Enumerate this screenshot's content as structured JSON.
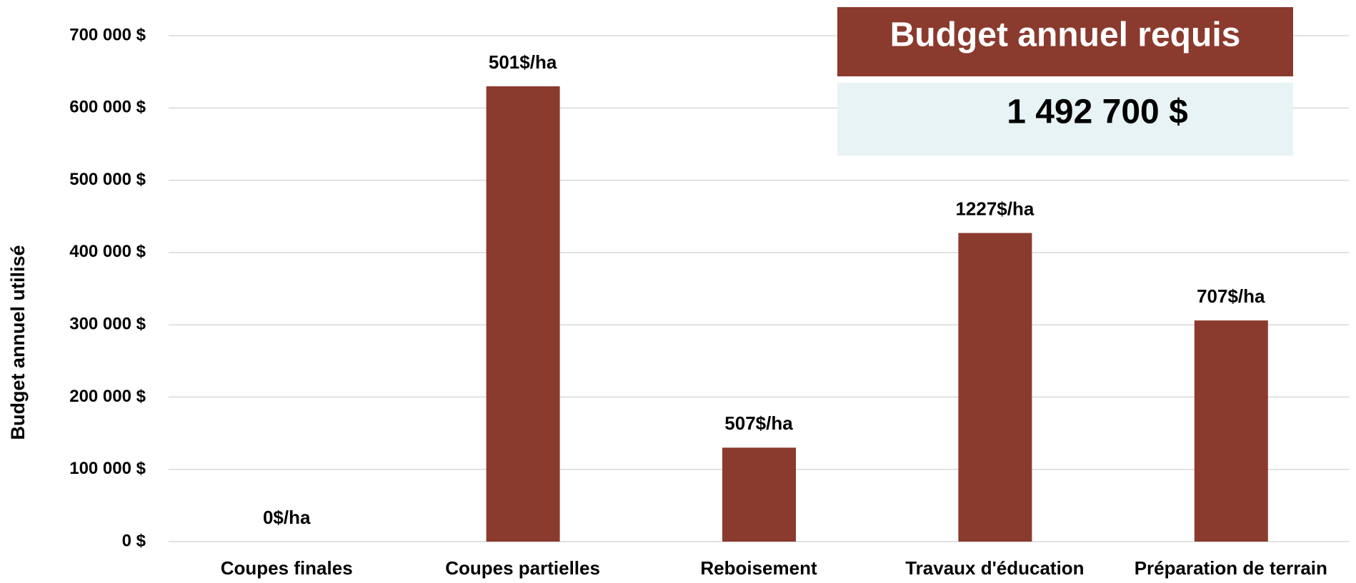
{
  "chart_data": {
    "type": "bar",
    "y_label": "Budget annuel utilisé",
    "categories": [
      "Coupes finales",
      "Coupes partielles",
      "Reboisement",
      "Travaux d'éducation",
      "Préparation de terrain"
    ],
    "values": [
      0,
      630000,
      130000,
      427000,
      306000
    ],
    "bar_labels": [
      "0$/ha",
      "501$/ha",
      "507$/ha",
      "1227$/ha",
      "707$/ha"
    ],
    "color": "#8b3a2e",
    "ylim": [
      0,
      700000
    ],
    "yticks": [
      {
        "value": 0,
        "label": "0 $"
      },
      {
        "value": 100000,
        "label": "100 000 $"
      },
      {
        "value": 200000,
        "label": "200 000 $"
      },
      {
        "value": 300000,
        "label": "300 000 $"
      },
      {
        "value": 400000,
        "label": "400 000 $"
      },
      {
        "value": 500000,
        "label": "500 000 $"
      },
      {
        "value": 600000,
        "label": "600 000 $"
      },
      {
        "value": 700000,
        "label": "700 000 $"
      }
    ],
    "grid": true,
    "box_title": "Budget annuel requis",
    "box_value": "1 492 700 $"
  }
}
